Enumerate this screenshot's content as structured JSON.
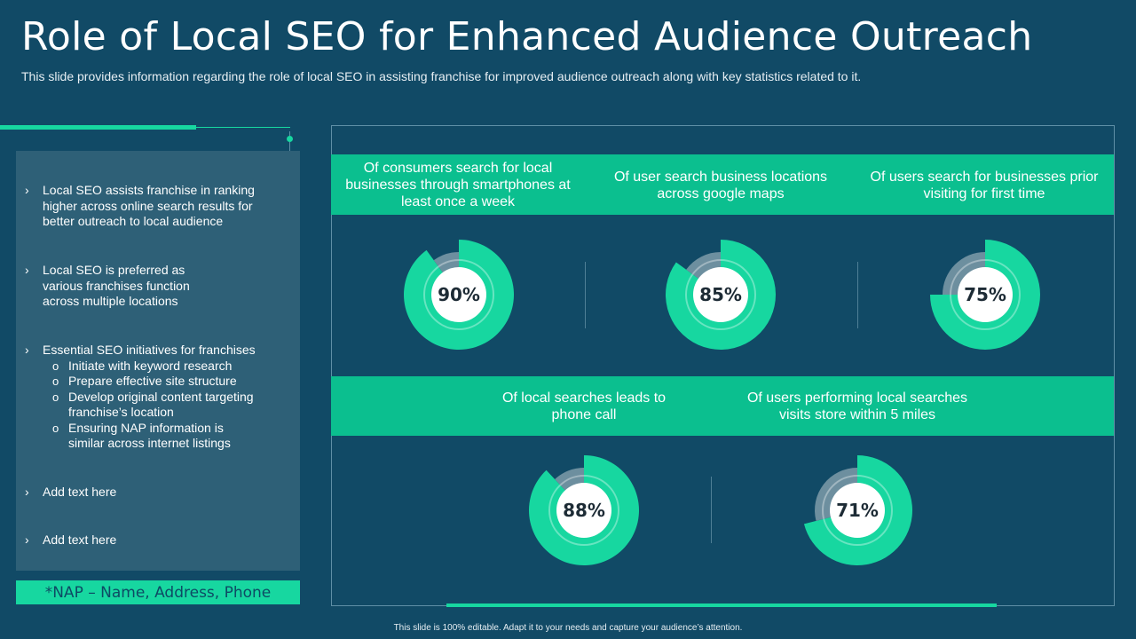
{
  "slide": {
    "title": "Role of Local SEO for Enhanced Audience Outreach",
    "subtitle": "This slide provides information regarding the role of local SEO in assisting franchise for improved audience outreach along with key statistics related to it.",
    "footer": "This slide is 100% editable. Adapt it to your needs and capture your audience’s attention."
  },
  "left_panel": {
    "bullets": [
      {
        "text": "Local SEO assists franchise in ranking higher across online search results for better outreach to local audience"
      },
      {
        "text": "Local SEO is preferred as various franchises function across multiple locations"
      },
      {
        "text": "Essential SEO initiatives for franchises",
        "sub": [
          "Initiate with keyword research",
          "Prepare effective site structure",
          "Develop original content targeting franchise’s location",
          "Ensuring NAP information is similar across internet listings"
        ]
      },
      {
        "text": "Add text here"
      },
      {
        "text": "Add text here"
      }
    ],
    "bullet_marker": "›",
    "sub_marker": "o",
    "note": "*NAP – Name, Address, Phone"
  },
  "stats": [
    {
      "label": "Of consumers search for local businesses through smartphones at least once a week",
      "value": "90%",
      "percent": 90
    },
    {
      "label": "Of user search business locations across google maps",
      "value": "85%",
      "percent": 85
    },
    {
      "label": "Of users search for businesses prior visiting for first time",
      "value": "75%",
      "percent": 75
    },
    {
      "label": "Of local searches leads to phone call",
      "value": "88%",
      "percent": 88
    },
    {
      "label": "Of users performing local searches visits store within 5 miles",
      "value": "71%",
      "percent": 71
    }
  ],
  "colors": {
    "background": "#114a66",
    "accent": "#17d7a0",
    "band": "#0bbf8f",
    "panel": "#2e6077"
  }
}
